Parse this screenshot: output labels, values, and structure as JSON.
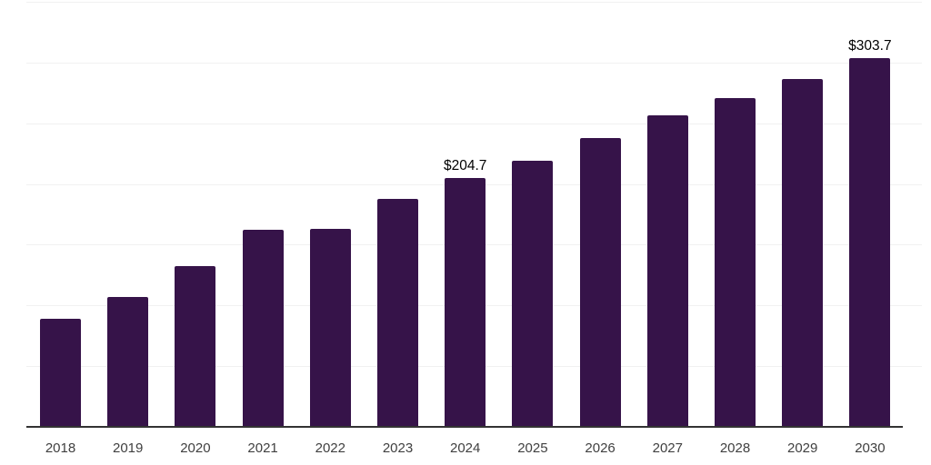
{
  "chart_data": {
    "type": "bar",
    "title": "",
    "xlabel": "",
    "ylabel": "",
    "categories": [
      "2018",
      "2019",
      "2020",
      "2021",
      "2022",
      "2023",
      "2024",
      "2025",
      "2026",
      "2027",
      "2028",
      "2029",
      "2030"
    ],
    "values": [
      89.1,
      107.3,
      132.7,
      162.6,
      162.9,
      188.0,
      204.7,
      219.0,
      237.7,
      256.3,
      271.0,
      286.7,
      303.7
    ],
    "data_labels": {
      "2024": "$204.7",
      "2030": "$303.7"
    },
    "ylim": [
      0,
      350
    ],
    "grid": true,
    "grid_step": 50,
    "legend": "none",
    "y_axis_tick_labels_visible": false,
    "colors": {
      "bar": "#361349",
      "gridline": "#f1f1f1",
      "axis_line": "#333333",
      "x_tick_label": "#404040",
      "value_label": "#000000",
      "background": "#ffffff"
    }
  }
}
